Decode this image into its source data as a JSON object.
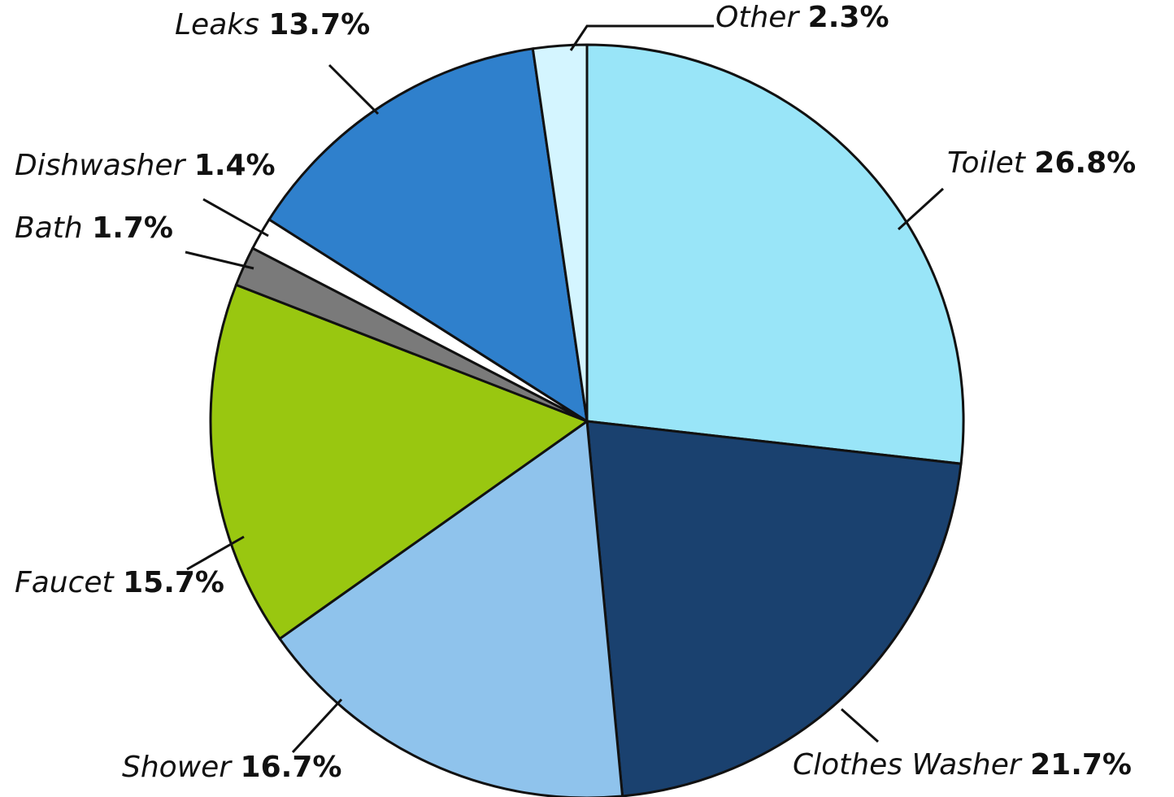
{
  "chart_data": {
    "type": "pie",
    "categories": [
      "Toilet",
      "Clothes Washer",
      "Shower",
      "Faucet",
      "Bath",
      "Dishwasher",
      "Leaks",
      "Other"
    ],
    "values": [
      26.8,
      21.7,
      16.7,
      15.7,
      1.7,
      1.4,
      13.7,
      2.3
    ],
    "value_labels": [
      "26.8%",
      "21.7%",
      "16.7%",
      "15.7%",
      "1.7%",
      "1.4%",
      "13.7%",
      "2.3%"
    ],
    "colors": [
      "#99e5f8",
      "#1a416f",
      "#8fc3ec",
      "#99c710",
      "#7a7a7a",
      "#ffffff",
      "#2f80cc",
      "#d4f5ff"
    ]
  }
}
